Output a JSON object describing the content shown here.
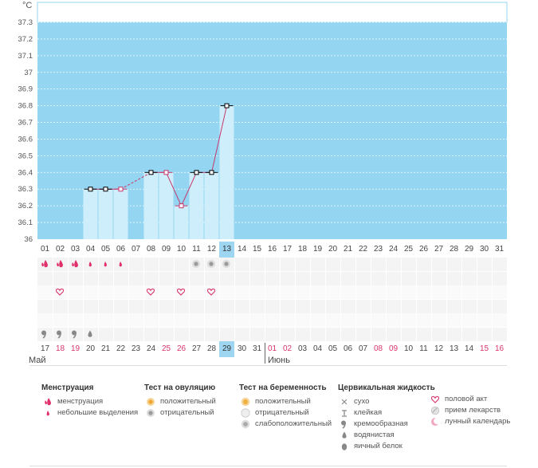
{
  "chart_data": {
    "type": "line",
    "unit": "°C",
    "ylim": [
      36,
      37.4
    ],
    "y_ticks": [
      "37.3",
      "37.2",
      "37.1",
      "37",
      "36.9",
      "36.8",
      "36.7",
      "36.6",
      "36.5",
      "36.4",
      "36.3",
      "36.2",
      "36.1",
      "36"
    ],
    "x_days": [
      "01",
      "02",
      "03",
      "04",
      "05",
      "06",
      "07",
      "08",
      "09",
      "10",
      "11",
      "12",
      "13",
      "14",
      "15",
      "16",
      "17",
      "18",
      "19",
      "20",
      "21",
      "22",
      "23",
      "24",
      "25",
      "26",
      "27",
      "28",
      "29",
      "30",
      "31"
    ],
    "temperatures": [
      null,
      null,
      null,
      36.3,
      36.3,
      36.3,
      null,
      36.4,
      36.4,
      36.2,
      36.4,
      36.4,
      36.8,
      null,
      null,
      null,
      null,
      null,
      null,
      null,
      null,
      null,
      null,
      null,
      null,
      null,
      null,
      null,
      null,
      null,
      null
    ],
    "marker_style": [
      "",
      "",
      "",
      "black",
      "black",
      "pink",
      "",
      "black",
      "pink",
      "pink",
      "black",
      "black",
      "black",
      "",
      "",
      "",
      "",
      "",
      "",
      "",
      "",
      "",
      "",
      "",
      "",
      "",
      "",
      "",
      "",
      "",
      ""
    ],
    "today_index": 12,
    "colors": {
      "background": "#94d5f1",
      "bar": "#cfeefb",
      "line": "#c8376c",
      "accent": "#d9346c"
    }
  },
  "date_row": {
    "dates": [
      "17",
      "18",
      "19",
      "20",
      "21",
      "22",
      "23",
      "24",
      "25",
      "26",
      "27",
      "28",
      "29",
      "30",
      "31",
      "01",
      "02",
      "03",
      "04",
      "05",
      "06",
      "07",
      "08",
      "09",
      "10",
      "11",
      "12",
      "13",
      "14",
      "15",
      "16"
    ],
    "weekend_index": [
      1,
      2,
      8,
      9,
      15,
      16,
      22,
      23,
      29,
      30
    ],
    "today_index": 12
  },
  "months": {
    "may": "Май",
    "june": "Июнь"
  },
  "symptoms": {
    "menstruation_heavy": [
      0,
      1,
      2
    ],
    "menstruation_light": [
      3,
      4,
      5
    ],
    "ovulation_negative": [
      10,
      11,
      12
    ],
    "intercourse": [
      1,
      7,
      9,
      11
    ],
    "mucus_creamy": [
      0,
      1,
      2
    ],
    "mucus_watery": [
      3
    ]
  },
  "legend": {
    "menstruation": {
      "title": "Менструация",
      "items": [
        {
          "icon": "menstruation-icon",
          "label": "менструация"
        },
        {
          "icon": "light-bleeding-icon",
          "label": "небольшие выделения"
        }
      ]
    },
    "ovulation_test": {
      "title": "Тест на овуляцию",
      "items": [
        {
          "icon": "ovulation-positive-icon",
          "label": "положительный"
        },
        {
          "icon": "ovulation-negative-icon",
          "label": "отрицательный"
        }
      ]
    },
    "pregnancy_test": {
      "title": "Тест на беременность",
      "items": [
        {
          "icon": "pregnancy-positive-icon",
          "label": "положительный"
        },
        {
          "icon": "pregnancy-negative-icon",
          "label": "отрицательный"
        },
        {
          "icon": "pregnancy-weak-icon",
          "label": "слабоположительный"
        }
      ]
    },
    "cervical_fluid": {
      "title": "Цервикальная жидкость",
      "items": [
        {
          "icon": "dry-icon",
          "label": "сухо"
        },
        {
          "icon": "sticky-icon",
          "label": "клейкая"
        },
        {
          "icon": "creamy-icon",
          "label": "кремообразная"
        },
        {
          "icon": "watery-icon",
          "label": "водянистая"
        },
        {
          "icon": "egg-white-icon",
          "label": "яичный белок"
        }
      ]
    },
    "other": {
      "items": [
        {
          "icon": "heart-icon",
          "label": "половой акт"
        },
        {
          "icon": "pill-icon",
          "label": "прием лекарств"
        },
        {
          "icon": "moon-icon",
          "label": "лунный календарь"
        }
      ]
    }
  }
}
